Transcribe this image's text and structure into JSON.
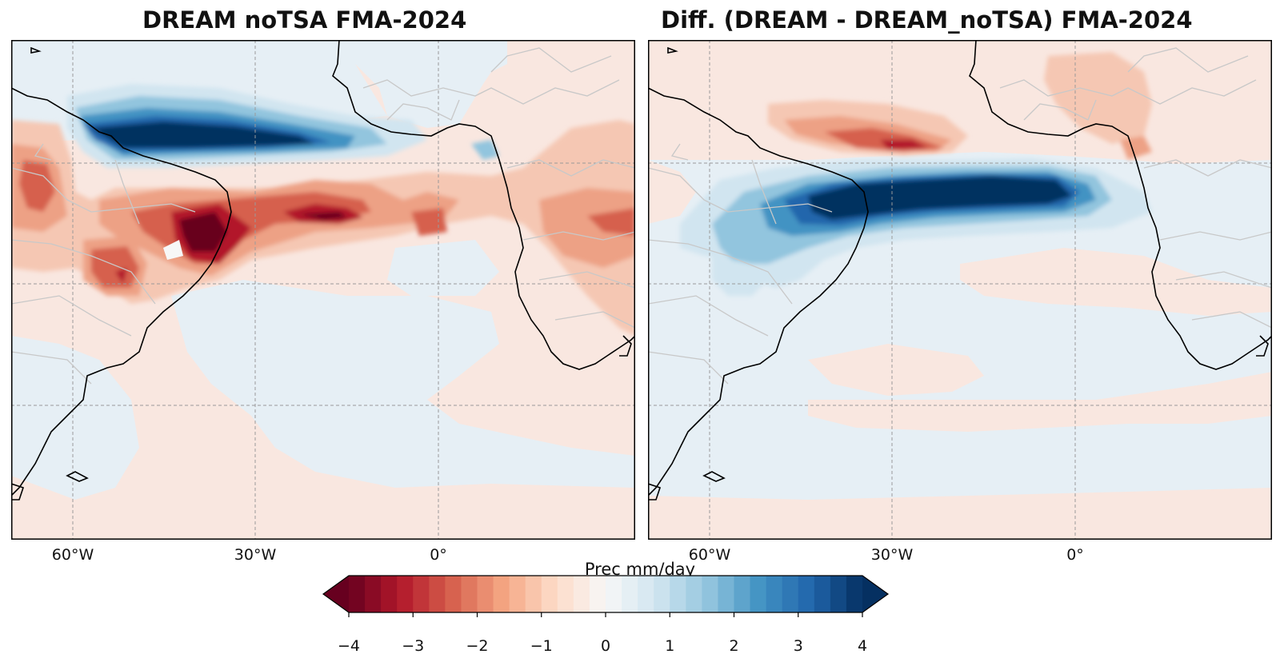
{
  "panels": [
    {
      "title": "DREAM noTSA  FMA-2024"
    },
    {
      "title": "Diff. (DREAM - DREAM_noTSA)   FMA-2024"
    }
  ],
  "longitude_ticks": [
    "60°W",
    "30°W",
    "0°"
  ],
  "colorbar": {
    "label": "Prec mm/day",
    "ticks": [
      "−4",
      "−3",
      "−2",
      "−1",
      "0",
      "1",
      "2",
      "3",
      "4"
    ],
    "range": [
      -4,
      4
    ],
    "colormap": "RdBu",
    "extend": "both"
  },
  "colors": {
    "coastline": "#000000",
    "borders": "#c8c8c8",
    "gridlines": "#9a9a9a",
    "strong_negative": "#67001f",
    "strong_positive": "#053061",
    "neutral_positive": "#e6eff5",
    "neutral_negative": "#f9e7e0"
  }
}
